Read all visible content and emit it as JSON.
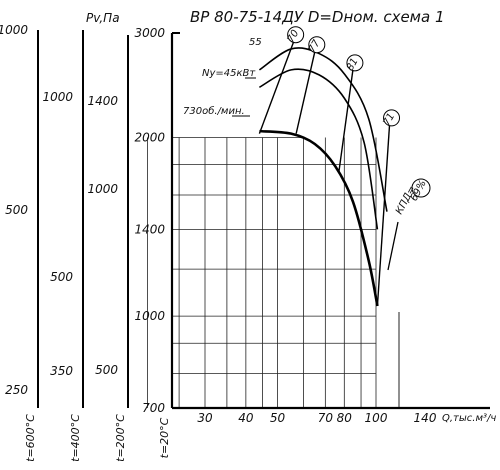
{
  "chart_data": {
    "type": "line",
    "title": "ВР 80-75-14ДУ  D=Dном. схема 1",
    "xlabel": "Q,тыс.м³/ч",
    "ylabel": "Pv,Па",
    "x_ticks": [
      30,
      40,
      50,
      70,
      80,
      100,
      140
    ],
    "main_axis": {
      "ticks": [
        700,
        1000,
        1400,
        2000,
        3000
      ],
      "range": [
        700,
        3000
      ]
    },
    "side_axes": [
      {
        "name": "t=600°C",
        "ticks": [
          1000,
          500,
          250
        ]
      },
      {
        "name": "t=400°C",
        "ticks": [
          1000,
          500,
          350
        ]
      },
      {
        "name": "t=200°C",
        "ticks": [
          1400,
          1000,
          500
        ]
      },
      {
        "name": "t=20°C",
        "ticks": []
      }
    ],
    "annotations": {
      "speed": "730об./мин.",
      "power": "Ny=45кВт",
      "power_value": "55",
      "efficiency": "КПД=",
      "efficiency_value": "69%"
    },
    "series": [
      {
        "role": "fan-curve",
        "points": [
          [
            44,
            2050
          ],
          [
            55,
            2030
          ],
          [
            65,
            1950
          ],
          [
            75,
            1790
          ],
          [
            85,
            1560
          ],
          [
            95,
            1240
          ],
          [
            101,
            1040
          ]
        ]
      },
      {
        "role": "power-curve",
        "value": 45,
        "points": [
          [
            44,
            2430
          ],
          [
            55,
            2600
          ],
          [
            67,
            2550
          ],
          [
            80,
            2330
          ],
          [
            92,
            1960
          ],
          [
            101,
            1400
          ]
        ]
      },
      {
        "role": "power-curve",
        "value": 55,
        "points": [
          [
            44,
            2600
          ],
          [
            55,
            2820
          ],
          [
            67,
            2770
          ],
          [
            80,
            2560
          ],
          [
            95,
            2150
          ],
          [
            108,
            1500
          ]
        ]
      }
    ],
    "efficiency_lines": [
      {
        "label": "70",
        "top": [
          56,
          2900
        ],
        "bottom": [
          44,
          2030
        ]
      },
      {
        "label": "77",
        "top": [
          65,
          2790
        ],
        "bottom": [
          57,
          2030
        ]
      },
      {
        "label": "81",
        "top": [
          85,
          2600
        ],
        "bottom": [
          77,
          1750
        ]
      },
      {
        "label": "71",
        "top": [
          110,
          2100
        ],
        "bottom": [
          101,
          1040
        ]
      }
    ],
    "grid": true
  }
}
